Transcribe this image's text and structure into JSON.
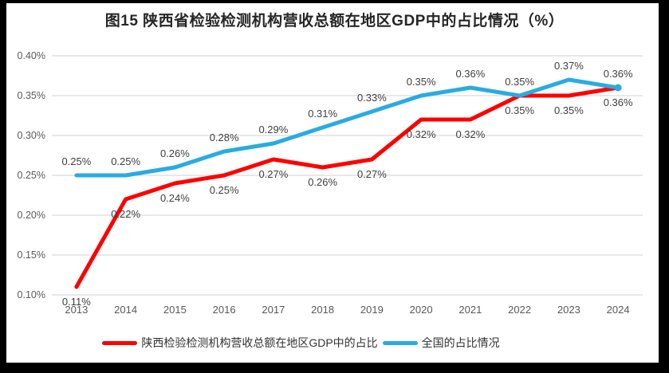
{
  "title": "图15 陕西省检验检测机构营收总额在地区GDP中的占比情况（%）",
  "chart_data": {
    "type": "line",
    "categories": [
      "2013",
      "2014",
      "2015",
      "2016",
      "2017",
      "2018",
      "2019",
      "2020",
      "2021",
      "2022",
      "2023",
      "2024"
    ],
    "series": [
      {
        "name": "陕西检验检测机构营收总额在地区GDP中的占比",
        "color": "#FE0000",
        "values": [
          0.11,
          0.22,
          0.24,
          0.25,
          0.27,
          0.26,
          0.27,
          0.32,
          0.32,
          0.35,
          0.35,
          0.36
        ],
        "labels": [
          "0.11%",
          "0.22%",
          "0.24%",
          "0.25%",
          "0.27%",
          "0.26%",
          "0.27%",
          "0.32%",
          "0.32%",
          "0.35%",
          "0.35%",
          "0.36%"
        ],
        "label_position": "below"
      },
      {
        "name": "全国的占比情况",
        "color": "#29ABE2",
        "values": [
          0.25,
          0.25,
          0.26,
          0.28,
          0.29,
          0.31,
          0.33,
          0.35,
          0.36,
          0.35,
          0.37,
          0.36
        ],
        "labels": [
          "0.25%",
          "0.25%",
          "0.26%",
          "0.28%",
          "0.29%",
          "0.31%",
          "0.33%",
          "0.35%",
          "0.36%",
          "0.35%",
          "0.37%",
          "0.36%"
        ],
        "label_position": "above"
      }
    ],
    "title": "图15 陕西省检验检测机构营收总额在地区GDP中的占比情况（%）",
    "xlabel": "",
    "ylabel": "",
    "ylim": [
      0.1,
      0.4
    ],
    "ytick_step": 0.05,
    "ytick_labels": [
      "0.10%",
      "0.15%",
      "0.20%",
      "0.25%",
      "0.30%",
      "0.35%",
      "0.40%"
    ],
    "grid": true,
    "legend_position": "bottom",
    "gridline_color": "#DADADA",
    "axis_text_color": "#595959",
    "label_text_color": "#3F3F3F",
    "line_width": 5
  }
}
